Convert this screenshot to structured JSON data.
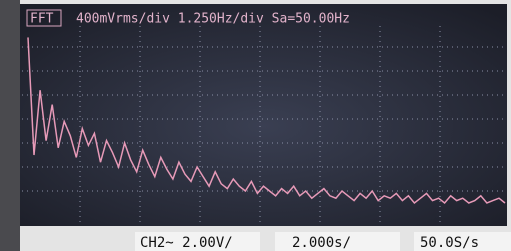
{
  "header": {
    "mode": "FFT",
    "settings": "400mVrms/div 1.250Hz/div Sa=50.00Hz"
  },
  "footer": {
    "channel": "CH2~ 2.00V/",
    "timebase": "2.000s/",
    "rate": "50.0S/s"
  },
  "trace": {
    "values": [
      7.4,
      2.5,
      5.2,
      3.1,
      4.6,
      2.8,
      3.9,
      3.3,
      2.4,
      3.6,
      2.9,
      3.4,
      2.2,
      3.1,
      2.6,
      2.0,
      3.0,
      2.3,
      1.8,
      2.7,
      2.1,
      1.6,
      2.4,
      1.9,
      1.5,
      2.2,
      1.7,
      1.4,
      2.0,
      1.6,
      1.2,
      1.8,
      1.3,
      1.1,
      1.5,
      1.2,
      1.0,
      1.4,
      0.9,
      1.2,
      1.0,
      0.8,
      1.1,
      0.9,
      1.2,
      0.8,
      1.0,
      0.7,
      0.9,
      1.1,
      0.8,
      0.7,
      1.0,
      0.8,
      0.6,
      0.9,
      0.7,
      1.0,
      0.6,
      0.8,
      0.7,
      0.9,
      0.6,
      0.8,
      0.5,
      0.7,
      0.9,
      0.6,
      0.7,
      0.5,
      0.8,
      0.6,
      0.7,
      0.5,
      0.6,
      0.8,
      0.5,
      0.6,
      0.7,
      0.5
    ]
  }
}
